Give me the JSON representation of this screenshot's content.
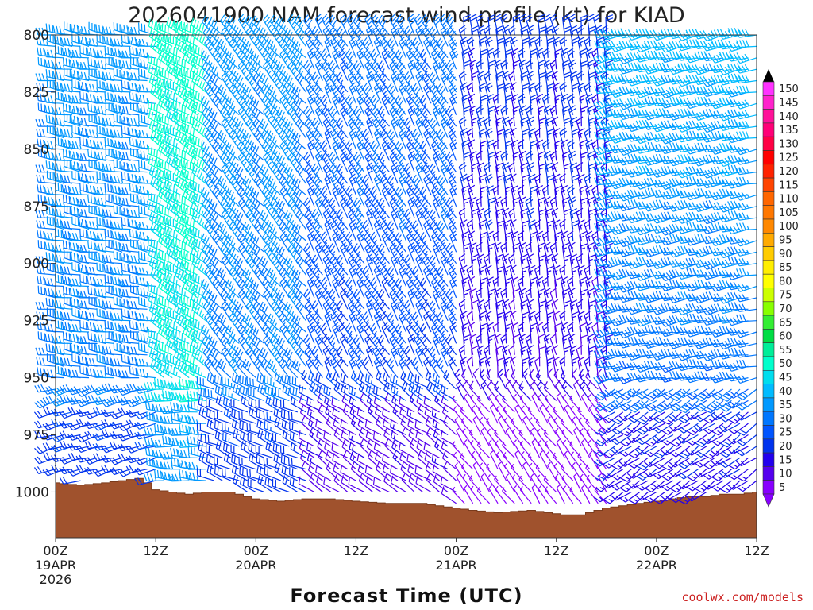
{
  "chart_data": {
    "type": "wind_barb_profile",
    "title": "2026041900 NAM forecast wind profile (kt) for KIAD",
    "xlabel": "Forecast Time (UTC)",
    "credit": "coolwx.com/models",
    "x_range_hours": [
      0,
      84
    ],
    "y_range_mb": [
      800,
      1020
    ],
    "y_ticks": [
      {
        "value": 800,
        "label": "800"
      },
      {
        "value": 825,
        "label": "825"
      },
      {
        "value": 850,
        "label": "850"
      },
      {
        "value": 875,
        "label": "875"
      },
      {
        "value": 900,
        "label": "900"
      },
      {
        "value": 925,
        "label": "925"
      },
      {
        "value": 950,
        "label": "950"
      },
      {
        "value": 975,
        "label": "975"
      },
      {
        "value": 1000,
        "label": "1000"
      }
    ],
    "x_ticks": [
      {
        "hour": 0,
        "lines": [
          "00Z",
          "19APR",
          "2026"
        ]
      },
      {
        "hour": 12,
        "lines": [
          "12Z"
        ]
      },
      {
        "hour": 24,
        "lines": [
          "00Z",
          "20APR"
        ]
      },
      {
        "hour": 36,
        "lines": [
          "12Z"
        ]
      },
      {
        "hour": 48,
        "lines": [
          "00Z",
          "21APR"
        ]
      },
      {
        "hour": 60,
        "lines": [
          "12Z"
        ]
      },
      {
        "hour": 72,
        "lines": [
          "00Z",
          "22APR"
        ]
      },
      {
        "hour": 84,
        "lines": [
          "12Z"
        ]
      }
    ],
    "surface_pressure_mb": [
      {
        "hour": 0,
        "mb": 996
      },
      {
        "hour": 3,
        "mb": 997
      },
      {
        "hour": 6,
        "mb": 996
      },
      {
        "hour": 8,
        "mb": 995
      },
      {
        "hour": 10,
        "mb": 994
      },
      {
        "hour": 11,
        "mb": 996
      },
      {
        "hour": 12,
        "mb": 999
      },
      {
        "hour": 14,
        "mb": 1000
      },
      {
        "hour": 16,
        "mb": 1001
      },
      {
        "hour": 18,
        "mb": 1000
      },
      {
        "hour": 21,
        "mb": 1000
      },
      {
        "hour": 23,
        "mb": 1002
      },
      {
        "hour": 24,
        "mb": 1003
      },
      {
        "hour": 27,
        "mb": 1004
      },
      {
        "hour": 30,
        "mb": 1003
      },
      {
        "hour": 33,
        "mb": 1003
      },
      {
        "hour": 36,
        "mb": 1004
      },
      {
        "hour": 40,
        "mb": 1005
      },
      {
        "hour": 44,
        "mb": 1005
      },
      {
        "hour": 46,
        "mb": 1006
      },
      {
        "hour": 48,
        "mb": 1007
      },
      {
        "hour": 50,
        "mb": 1008
      },
      {
        "hour": 53,
        "mb": 1009
      },
      {
        "hour": 57,
        "mb": 1008
      },
      {
        "hour": 59,
        "mb": 1009
      },
      {
        "hour": 61,
        "mb": 1010
      },
      {
        "hour": 63,
        "mb": 1010
      },
      {
        "hour": 64,
        "mb": 1009
      },
      {
        "hour": 66,
        "mb": 1007
      },
      {
        "hour": 68,
        "mb": 1006
      },
      {
        "hour": 70,
        "mb": 1005
      },
      {
        "hour": 72,
        "mb": 1004
      },
      {
        "hour": 74,
        "mb": 1003
      },
      {
        "hour": 76,
        "mb": 1002
      },
      {
        "hour": 78,
        "mb": 1002
      },
      {
        "hour": 80,
        "mb": 1001
      },
      {
        "hour": 82,
        "mb": 1001
      },
      {
        "hour": 84,
        "mb": 1000
      }
    ],
    "wind_regimes": [
      {
        "hour_from": 0,
        "hour_to": 12,
        "direction_deg": 280,
        "speed_kt": [
          30,
          35
        ]
      },
      {
        "hour_from": 12,
        "hour_to": 18,
        "direction_deg": 300,
        "speed_kt": [
          45,
          50
        ]
      },
      {
        "hour_from": 18,
        "hour_to": 30,
        "direction_deg": 320,
        "speed_kt": [
          30,
          35
        ]
      },
      {
        "hour_from": 30,
        "hour_to": 48,
        "direction_deg": 330,
        "speed_kt": [
          20,
          30
        ]
      },
      {
        "hour_from": 48,
        "hour_to": 66,
        "direction_deg": 350,
        "speed_kt": [
          10,
          20
        ]
      },
      {
        "hour_from": 66,
        "hour_to": 84,
        "direction_deg": 260,
        "speed_kt": [
          25,
          40
        ]
      }
    ],
    "colorbar": {
      "min": 5,
      "max": 150,
      "step": 5,
      "labels": [
        "150",
        "145",
        "140",
        "135",
        "130",
        "125",
        "120",
        "115",
        "110",
        "105",
        "100",
        "95",
        "90",
        "85",
        "80",
        "75",
        "70",
        "65",
        "60",
        "55",
        "50",
        "45",
        "40",
        "35",
        "30",
        "25",
        "20",
        "15",
        "10",
        "5"
      ],
      "colors": [
        "#ff33ff",
        "#ff22cc",
        "#ff1199",
        "#ff0077",
        "#ff0044",
        "#ff0000",
        "#ff2200",
        "#ff4400",
        "#ff6600",
        "#ff7700",
        "#ff8800",
        "#ffaa00",
        "#ffcc00",
        "#ffee00",
        "#ffff00",
        "#ccff00",
        "#88ff00",
        "#33ee33",
        "#00dd44",
        "#00ee99",
        "#00ffcc",
        "#00ddee",
        "#00bbff",
        "#0099ff",
        "#0077ff",
        "#0055ff",
        "#0033ee",
        "#2200ee",
        "#5500ee",
        "#8800ff"
      ]
    }
  }
}
